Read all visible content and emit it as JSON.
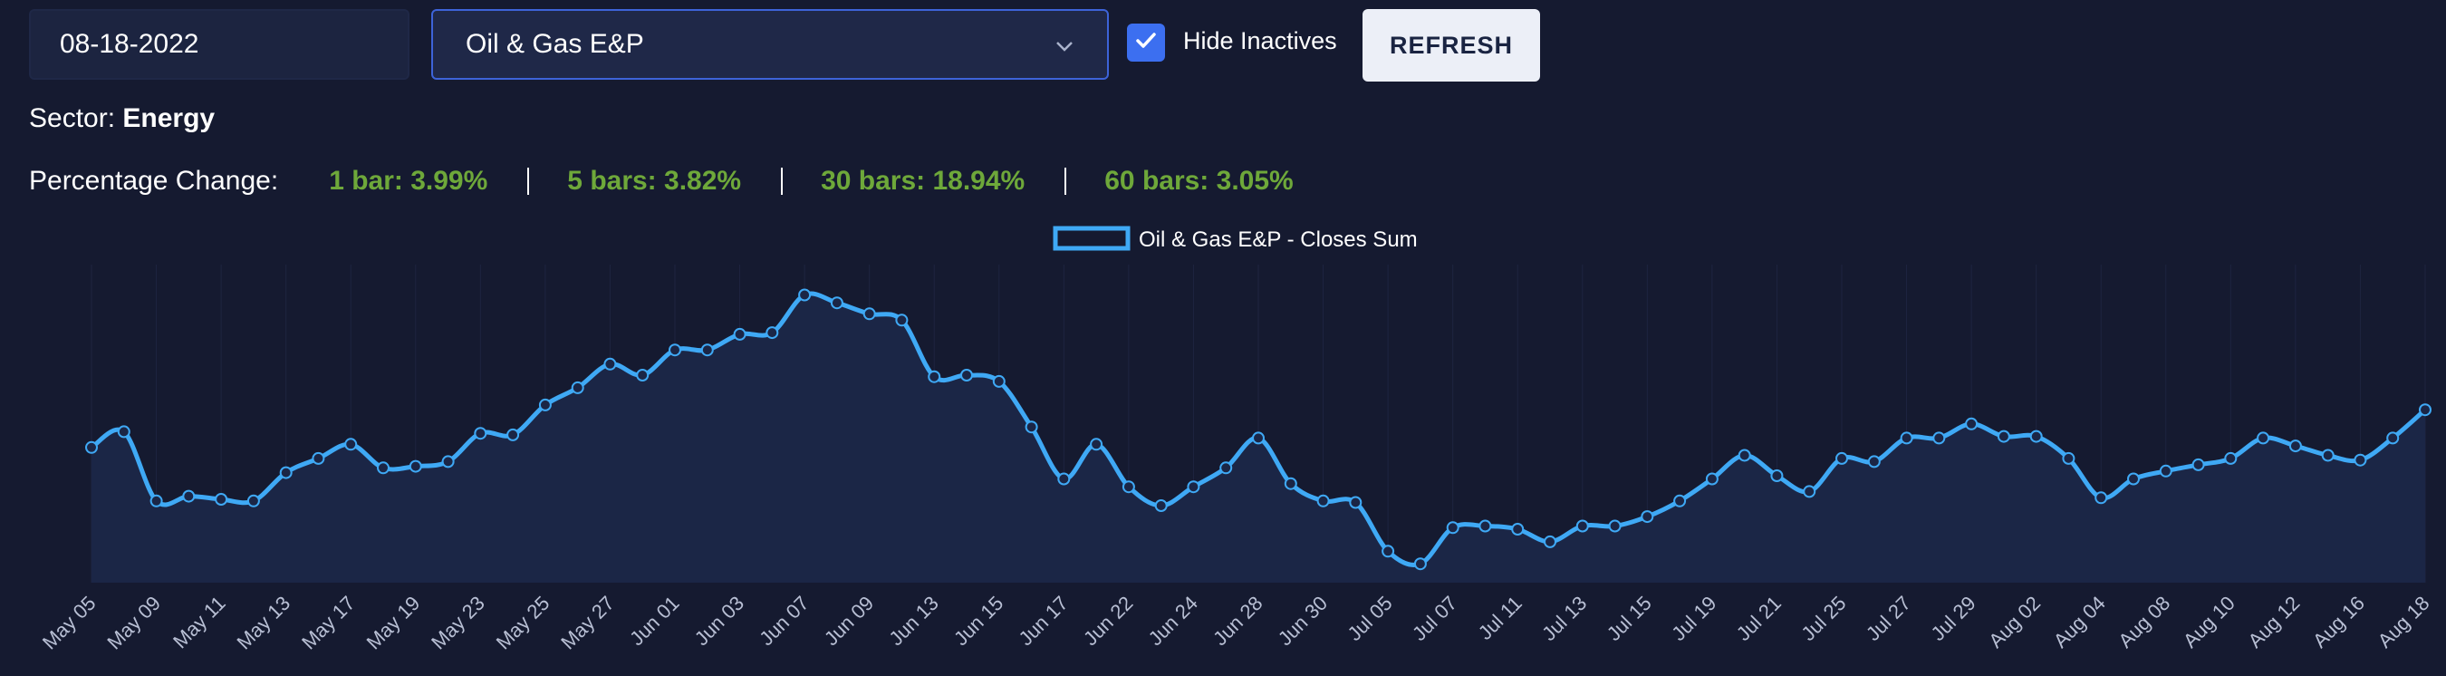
{
  "toolbar": {
    "date_value": "08-18-2022",
    "sector_value": "Oil & Gas E&P",
    "hide_inactives_label": "Hide Inactives",
    "hide_inactives_checked": true,
    "refresh_label": "REFRESH"
  },
  "info": {
    "sector_prefix": "Sector:",
    "sector_name": "Energy",
    "pct_label": "Percentage Change:",
    "pct_1": "1 bar: 3.99%",
    "pct_5": "5 bars: 3.82%",
    "pct_30": "30 bars: 18.94%",
    "pct_60": "60 bars: 3.05%"
  },
  "colors": {
    "background": "#151a30",
    "line": "#3fa9f5",
    "fill": "#1b2646",
    "positive": "#6ea83a"
  },
  "chart_data": {
    "type": "area",
    "legend": "top-center",
    "ylim": [
      0,
      100
    ],
    "y_ticks_visible": false,
    "x_tick_labels": [
      "May 05",
      "May 09",
      "May 11",
      "May 13",
      "May 17",
      "May 19",
      "May 23",
      "May 25",
      "May 27",
      "Jun 01",
      "Jun 03",
      "Jun 07",
      "Jun 09",
      "Jun 13",
      "Jun 15",
      "Jun 17",
      "Jun 22",
      "Jun 24",
      "Jun 28",
      "Jun 30",
      "Jul 05",
      "Jul 07",
      "Jul 11",
      "Jul 13",
      "Jul 15",
      "Jul 19",
      "Jul 21",
      "Jul 25",
      "Jul 27",
      "Jul 29",
      "Aug 02",
      "Aug 04",
      "Aug 08",
      "Aug 10",
      "Aug 12",
      "Aug 16",
      "Aug 18"
    ],
    "series": [
      {
        "name": "Oil & Gas E&P - Closes Sum",
        "values": [
          43,
          48,
          26,
          27.5,
          26.5,
          26,
          35,
          39.5,
          44,
          36.5,
          37,
          38.5,
          47.5,
          47,
          56.5,
          62,
          69.5,
          66,
          74,
          74,
          79,
          79.5,
          91.5,
          89,
          85.5,
          83.5,
          65.5,
          66,
          64,
          49.5,
          33,
          44,
          30.5,
          24.5,
          30.5,
          36.5,
          46,
          31.5,
          26,
          25.5,
          10,
          6,
          17.5,
          18,
          17,
          13,
          18,
          18,
          21,
          26,
          33,
          40.5,
          34,
          29,
          39.5,
          38.5,
          46,
          46,
          50.5,
          46.5,
          46.5,
          39.5,
          27,
          33,
          35.5,
          37.5,
          39.5,
          46,
          43.5,
          40.5,
          39,
          46,
          55
        ]
      }
    ]
  }
}
